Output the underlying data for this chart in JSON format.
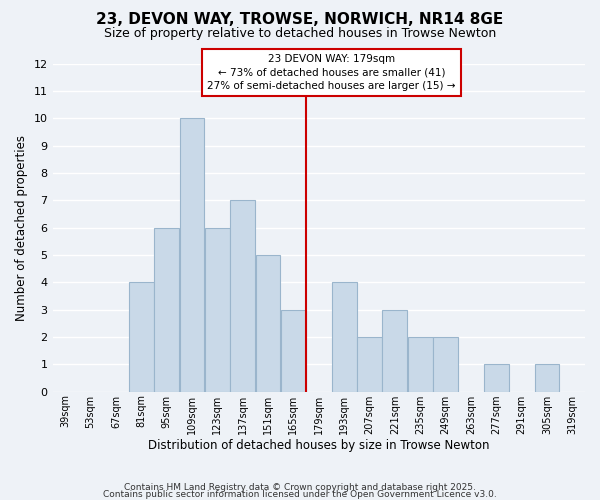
{
  "title": "23, DEVON WAY, TROWSE, NORWICH, NR14 8GE",
  "subtitle": "Size of property relative to detached houses in Trowse Newton",
  "xlabel": "Distribution of detached houses by size in Trowse Newton",
  "ylabel": "Number of detached properties",
  "bins": [
    39,
    53,
    67,
    81,
    95,
    109,
    123,
    137,
    151,
    165,
    179,
    193,
    207,
    221,
    235,
    249,
    263,
    277,
    291,
    305,
    319
  ],
  "counts": [
    0,
    0,
    0,
    4,
    6,
    10,
    6,
    7,
    5,
    3,
    0,
    4,
    2,
    3,
    2,
    2,
    0,
    1,
    0,
    1
  ],
  "bar_color": "#c9d9e8",
  "bar_edge_color": "#9ab5cc",
  "vline_x": 179,
  "vline_color": "#cc0000",
  "annotation_line1": "23 DEVON WAY: 179sqm",
  "annotation_line2": "← 73% of detached houses are smaller (41)",
  "annotation_line3": "27% of semi-detached houses are larger (15) →",
  "annotation_box_color": "#ffffff",
  "annotation_box_edge": "#cc0000",
  "ylim": [
    0,
    12
  ],
  "yticks": [
    0,
    1,
    2,
    3,
    4,
    5,
    6,
    7,
    8,
    9,
    10,
    11,
    12
  ],
  "tick_labels": [
    "39sqm",
    "53sqm",
    "67sqm",
    "81sqm",
    "95sqm",
    "109sqm",
    "123sqm",
    "137sqm",
    "151sqm",
    "165sqm",
    "179sqm",
    "193sqm",
    "207sqm",
    "221sqm",
    "235sqm",
    "249sqm",
    "263sqm",
    "277sqm",
    "291sqm",
    "305sqm",
    "319sqm"
  ],
  "footnote1": "Contains HM Land Registry data © Crown copyright and database right 2025.",
  "footnote2": "Contains public sector information licensed under the Open Government Licence v3.0.",
  "background_color": "#eef2f7",
  "grid_color": "#ffffff",
  "grid_alpha": 1.0
}
